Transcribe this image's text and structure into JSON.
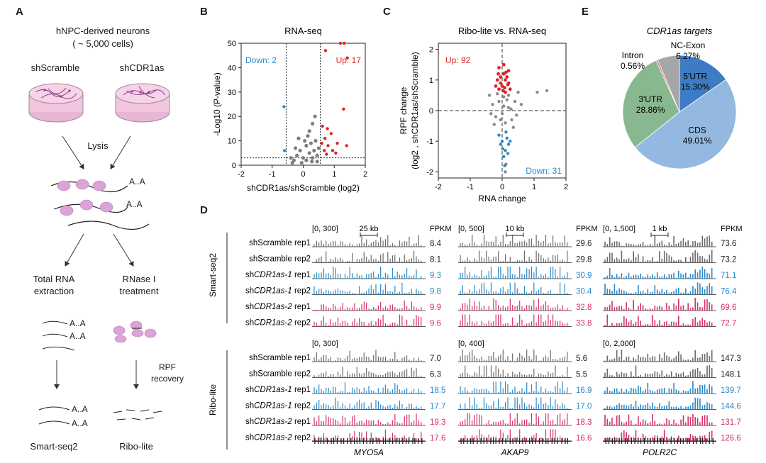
{
  "figure": {
    "panel_letters": [
      "A",
      "B",
      "C",
      "D",
      "E"
    ]
  },
  "panel_a": {
    "title_line1": "hNPC-derived neurons",
    "title_line2": "( ~ 5,000 cells)",
    "condition_left": "shScramble",
    "condition_right": "shCDR1as",
    "lysis": "Lysis",
    "poly_a": "A..A",
    "left_step_line1": "Total RNA",
    "left_step_line2": "extraction",
    "right_step_line1": "RNase I",
    "right_step_line2": "treatment",
    "rpf_line1": "RPF",
    "rpf_line2": "recovery",
    "left_method": "Smart-seq2",
    "right_method": "Ribo-lite"
  },
  "chart_data": [
    {
      "type": "scatter",
      "panel": "B",
      "title": "RNA-seq",
      "xlabel": "shCDR1as/shScramble (log2)",
      "ylabel": "-Log10 (P-value)",
      "xlim": [
        -2,
        2
      ],
      "ylim": [
        0,
        50
      ],
      "xticks": [
        -2,
        -1,
        0,
        1,
        2
      ],
      "yticks": [
        0,
        10,
        20,
        30,
        40,
        50
      ],
      "annotations": {
        "down": "Down: 2",
        "up": "Up: 17"
      },
      "thresholds": {
        "fc": [
          -0.55,
          0.55
        ],
        "p": 3
      },
      "down": [
        [
          -0.62,
          24
        ],
        [
          -0.6,
          6
        ]
      ],
      "up": [
        [
          1.2,
          50
        ],
        [
          1.32,
          50
        ],
        [
          0.72,
          47
        ],
        [
          1.42,
          44
        ],
        [
          1.3,
          23
        ],
        [
          0.62,
          16
        ],
        [
          0.78,
          15
        ],
        [
          0.9,
          13
        ],
        [
          0.7,
          11
        ],
        [
          0.6,
          9
        ],
        [
          1.1,
          9
        ],
        [
          0.8,
          8
        ],
        [
          1.4,
          8
        ],
        [
          0.95,
          6
        ],
        [
          0.68,
          6
        ],
        [
          1.05,
          5
        ],
        [
          0.75,
          4.5
        ]
      ],
      "ns": [
        [
          -0.3,
          2
        ],
        [
          -0.2,
          4
        ],
        [
          -0.1,
          6
        ],
        [
          0,
          3
        ],
        [
          0.1,
          8
        ],
        [
          0.2,
          5
        ],
        [
          0.3,
          3
        ],
        [
          -0.25,
          7
        ],
        [
          0.05,
          10
        ],
        [
          0.15,
          12
        ],
        [
          0.25,
          9
        ],
        [
          -0.15,
          11
        ],
        [
          0.35,
          6
        ],
        [
          0.45,
          4
        ],
        [
          -0.4,
          3
        ],
        [
          0.4,
          10
        ],
        [
          0.5,
          7
        ],
        [
          0.2,
          14
        ],
        [
          0.3,
          17
        ],
        [
          -0.05,
          1
        ],
        [
          0.1,
          2
        ],
        [
          0.38,
          20
        ],
        [
          0.28,
          1.5
        ],
        [
          -0.35,
          1
        ],
        [
          0.45,
          1.5
        ]
      ]
    },
    {
      "type": "scatter",
      "panel": "C",
      "title": "Ribo-lite vs. RNA-seq",
      "xlabel_line1": "RNA change",
      "xlabel_line2": "(log2 , shCDR1as/shScramble)",
      "ylabel_line1": "RPF change",
      "ylabel_line2": "(log2 , shCDR1as/shScramble)",
      "xlim": [
        -2,
        2
      ],
      "ylim": [
        -2.2,
        2.2
      ],
      "xticks": [
        -2,
        -1,
        0,
        1,
        2
      ],
      "yticks": [
        -2,
        -1,
        0,
        1,
        2
      ],
      "annotations": {
        "up": "Up: 92",
        "down": "Down: 31"
      },
      "up": [
        [
          -0.1,
          1.4
        ],
        [
          0.05,
          1.2
        ],
        [
          0.1,
          1.0
        ],
        [
          -0.05,
          0.9
        ],
        [
          0.15,
          1.1
        ],
        [
          0,
          0.8
        ],
        [
          -0.15,
          1.0
        ],
        [
          0.2,
          0.9
        ],
        [
          0.05,
          1.5
        ],
        [
          -0.1,
          0.7
        ],
        [
          0.1,
          0.6
        ],
        [
          0.2,
          1.3
        ],
        [
          -0.2,
          0.8
        ],
        [
          0.08,
          0.75
        ],
        [
          0.25,
          0.7
        ],
        [
          -0.05,
          1.1
        ],
        [
          0.12,
          1.25
        ],
        [
          -0.12,
          1.2
        ],
        [
          0.03,
          0.65
        ],
        [
          0.18,
          0.85
        ]
      ],
      "down": [
        [
          0,
          -1.0
        ],
        [
          0.1,
          -1.3
        ],
        [
          -0.05,
          -1.1
        ],
        [
          0.15,
          -0.9
        ],
        [
          0.05,
          -1.5
        ],
        [
          0.2,
          -1.1
        ],
        [
          -0.1,
          -0.8
        ],
        [
          0.08,
          -1.8
        ],
        [
          0.12,
          -0.7
        ],
        [
          0.25,
          -1.0
        ],
        [
          0.02,
          -1.25
        ],
        [
          0.18,
          -1.4
        ]
      ],
      "ns": [
        [
          0.4,
          0.3
        ],
        [
          -0.3,
          0.2
        ],
        [
          0.2,
          0.1
        ],
        [
          -0.2,
          -0.2
        ],
        [
          0.1,
          -0.4
        ],
        [
          0.3,
          -0.3
        ],
        [
          -0.4,
          0.5
        ],
        [
          0.5,
          0.6
        ],
        [
          0.6,
          0.2
        ],
        [
          -0.1,
          0.3
        ],
        [
          0,
          -0.1
        ],
        [
          0.05,
          0.45
        ],
        [
          1.4,
          0.65
        ],
        [
          1.1,
          0.6
        ],
        [
          0.35,
          -0.55
        ],
        [
          -0.25,
          -0.45
        ],
        [
          0.15,
          0.35
        ],
        [
          -0.05,
          -0.3
        ],
        [
          0.28,
          0.05
        ],
        [
          -0.35,
          -0.1
        ],
        [
          0.45,
          -0.15
        ],
        [
          0.05,
          0.15
        ],
        [
          0.2,
          0.5
        ],
        [
          -0.15,
          0.55
        ],
        [
          0.12,
          -1.75
        ],
        [
          0.1,
          -2.0
        ]
      ]
    },
    {
      "type": "pie",
      "panel": "E",
      "title": "CDR1as targets",
      "labels": [
        "5'UTR",
        "CDS",
        "3'UTR",
        "Intron",
        "NC-Exon"
      ],
      "values": [
        15.3,
        49.01,
        28.86,
        0.56,
        6.27
      ],
      "value_labels": [
        "15.30%",
        "49.01%",
        "28.86%",
        "0.56%",
        "6.27%"
      ],
      "colors": [
        "#3d7cc4",
        "#94b9e0",
        "#88b890",
        "#e27d7d",
        "#a6a6a6"
      ]
    }
  ],
  "panel_d": {
    "fpkm_label": "FPKM",
    "smart_group": "Smart-seq2",
    "ribo_group": "Ribo-lite",
    "rows": [
      {
        "sample": "shScramble",
        "italic": "",
        "rep": "rep1",
        "color": "#6b6b6b"
      },
      {
        "sample": "shScramble",
        "italic": "",
        "rep": "rep2",
        "color": "#6b6b6b"
      },
      {
        "sample": "sh",
        "italic": "CDR1as-1",
        "rep": "rep1",
        "color": "#2b8ac8"
      },
      {
        "sample": "sh",
        "italic": "CDR1as-1",
        "rep": "rep2",
        "color": "#2b8ac8"
      },
      {
        "sample": "sh",
        "italic": "CDR1as-2",
        "rep": "rep1",
        "color": "#d6306c"
      },
      {
        "sample": "sh",
        "italic": "CDR1as-2",
        "rep": "rep2",
        "color": "#d6306c"
      }
    ],
    "genes": [
      {
        "name": "MYO5A",
        "scale_bar": "25 kb",
        "smart_range": "[0, 300]",
        "ribo_range": "[0, 300]",
        "smart_fpkm": [
          "8.4",
          "8.1",
          "9.3",
          "9.8",
          "9.9",
          "9.6"
        ],
        "ribo_fpkm": [
          "7.0",
          "6.3",
          "18.5",
          "17.7",
          "19.3",
          "17.6"
        ]
      },
      {
        "name": "AKAP9",
        "scale_bar": "10 kb",
        "smart_range": "[0, 500]",
        "ribo_range": "[0, 400]",
        "smart_fpkm": [
          "29.6",
          "29.8",
          "30.9",
          "30.4",
          "32.8",
          "33.8"
        ],
        "ribo_fpkm": [
          "5.6",
          "5.5",
          "16.9",
          "17.0",
          "18.3",
          "16.6"
        ]
      },
      {
        "name": "POLR2C",
        "scale_bar": "1 kb",
        "smart_range": "[0, 1,500]",
        "ribo_range": "[0, 2,000]",
        "smart_fpkm": [
          "73.6",
          "73.2",
          "71.1",
          "76.4",
          "69.6",
          "72.7"
        ],
        "ribo_fpkm": [
          "147.3",
          "148.1",
          "139.7",
          "144.6",
          "131.7",
          "126.6"
        ]
      }
    ]
  }
}
